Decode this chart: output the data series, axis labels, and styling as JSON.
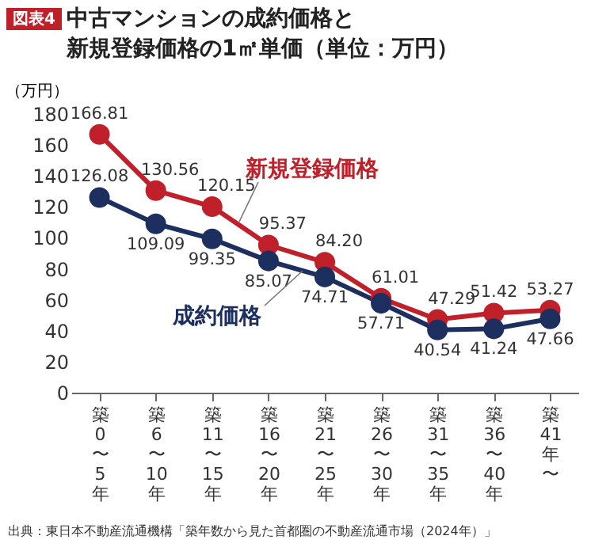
{
  "chart_data": {
    "type": "line",
    "title": "中古マンションの成約価格と新規登録価格の1㎡単価（単位：万円）",
    "ylabel": "（万円）",
    "categories": [
      "築0〜5年",
      "築6〜10年",
      "築11〜15年",
      "築16〜20年",
      "築21〜25年",
      "築26〜30年",
      "築31〜35年",
      "築36〜40年",
      "築41年〜"
    ],
    "series": [
      {
        "name": "新規登録価格",
        "color": "#c0202a",
        "values": [
          166.81,
          130.56,
          120.15,
          95.37,
          84.2,
          61.01,
          47.29,
          51.42,
          53.27
        ],
        "value_labels": [
          "166.81",
          "130.56",
          "120.15",
          "95.37",
          "84.20",
          "61.01",
          "47.29",
          "51.42",
          "53.27"
        ]
      },
      {
        "name": "成約価格",
        "color": "#1c2f5e",
        "values": [
          126.08,
          109.09,
          99.35,
          85.07,
          74.71,
          57.71,
          40.54,
          41.24,
          47.66
        ],
        "value_labels": [
          "126.08",
          "109.09",
          "99.35",
          "85.07",
          "74.71",
          "57.71",
          "40.54",
          "41.24",
          "47.66"
        ]
      }
    ],
    "ylim": [
      0,
      180
    ],
    "yticks": [
      0,
      20,
      40,
      60,
      80,
      100,
      120,
      140,
      160,
      180
    ],
    "marker": "circle",
    "line_style": "solid",
    "grid": false,
    "legend": false,
    "annotations": [
      "図表4",
      "出典：東日本不動産流通機構「築年数から見た首都圏の不動産流通市場（2024年）」"
    ]
  }
}
